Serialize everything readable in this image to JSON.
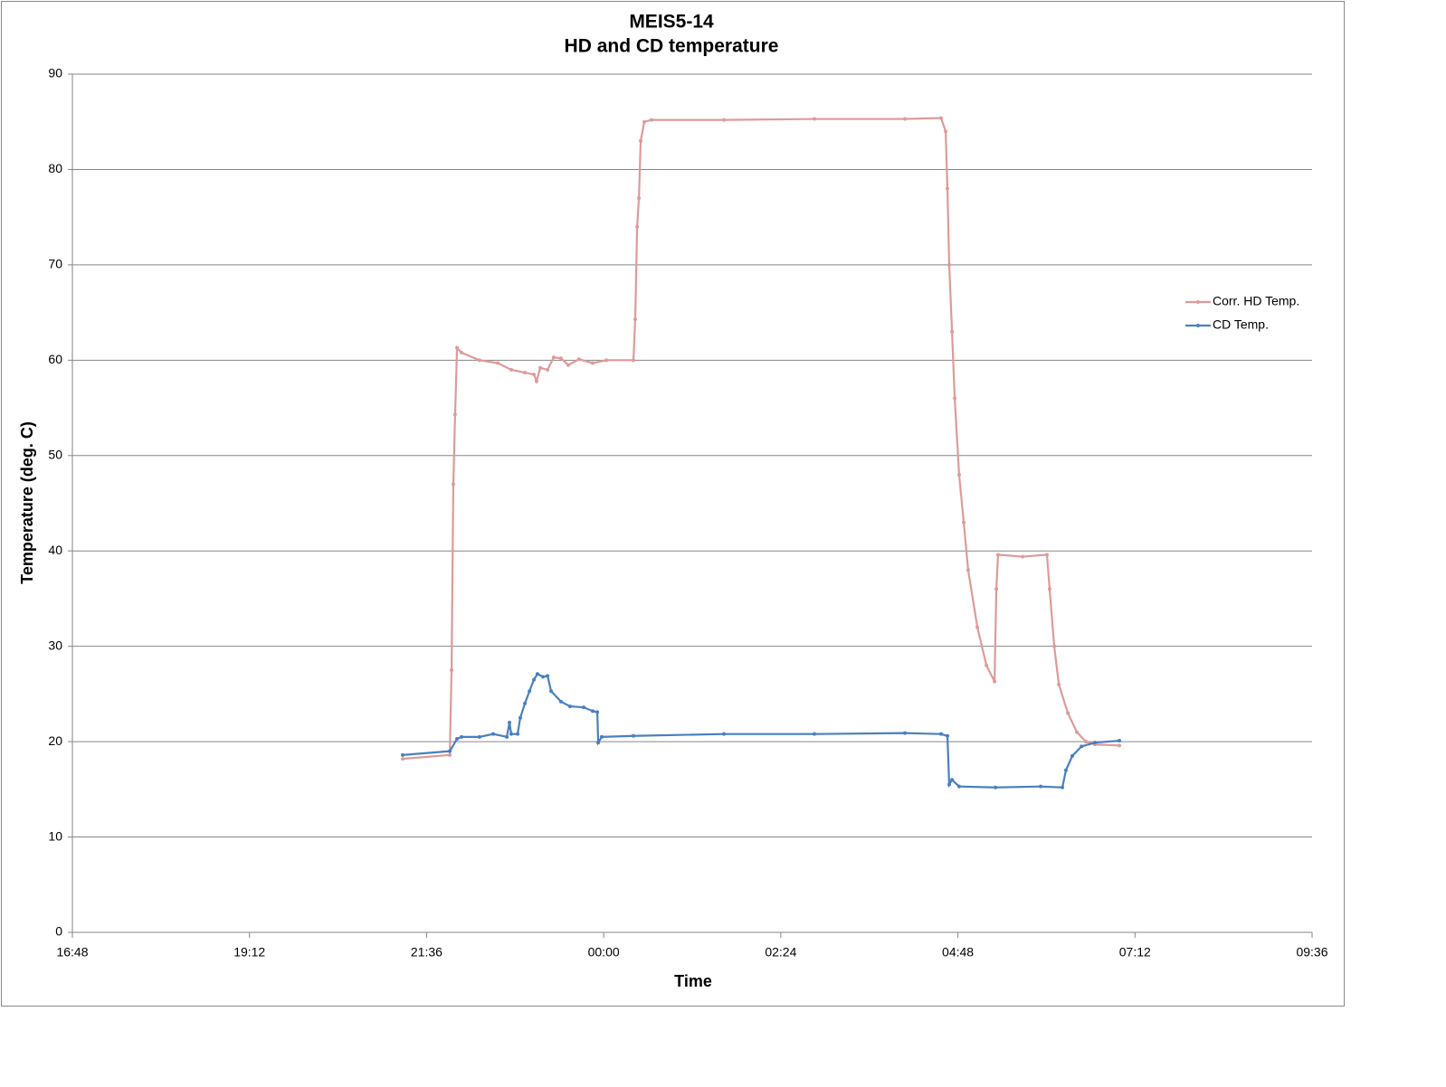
{
  "chart_data": {
    "type": "line",
    "title": "MEIS5-14",
    "subtitle": "HD and CD temperature",
    "x_label": "Time",
    "y_label": "Temperature (deg. C)",
    "xlim": [
      0.7,
      1.4
    ],
    "xticks": [
      {
        "value": 0.7,
        "label": "16:48"
      },
      {
        "value": 0.8,
        "label": "19:12"
      },
      {
        "value": 0.9,
        "label": "21:36"
      },
      {
        "value": 1.0,
        "label": "00:00"
      },
      {
        "value": 1.1,
        "label": "02:24"
      },
      {
        "value": 1.2,
        "label": "04:48"
      },
      {
        "value": 1.3,
        "label": "07:12"
      },
      {
        "value": 1.4,
        "label": "09:36"
      }
    ],
    "ylim": [
      0,
      90
    ],
    "yticks": [
      0,
      10,
      20,
      30,
      40,
      50,
      60,
      70,
      80,
      90
    ],
    "grid": true,
    "legend": "right",
    "series": [
      {
        "name": "Corr. HD Temp.",
        "color": "#dd9b9a",
        "x": [
          0.8865,
          0.9131,
          0.9141,
          0.9151,
          0.9161,
          0.9172,
          0.9197,
          0.9299,
          0.9402,
          0.9478,
          0.9555,
          0.9606,
          0.9621,
          0.9642,
          0.9683,
          0.9718,
          0.9759,
          0.98,
          0.9861,
          0.9938,
          1.0015,
          1.0168,
          1.0178,
          1.0189,
          1.0199,
          1.0209,
          1.0229,
          1.027,
          1.0679,
          1.119,
          1.1701,
          1.1905,
          1.1931,
          1.1941,
          1.1951,
          1.1967,
          1.1982,
          1.2007,
          1.2033,
          1.2058,
          1.211,
          1.2161,
          1.2207,
          1.2217,
          1.2227,
          1.2365,
          1.2503,
          1.2518,
          1.2544,
          1.257,
          1.2621,
          1.2672,
          1.2723,
          1.2774,
          1.2912
        ],
        "values": [
          18.2,
          18.6,
          27.5,
          47,
          54.3,
          61.3,
          60.8,
          60,
          59.7,
          59,
          58.7,
          58.5,
          57.8,
          59.2,
          59,
          60.3,
          60.2,
          59.5,
          60.1,
          59.7,
          60,
          60,
          64.3,
          74,
          77,
          83,
          85,
          85.2,
          85.2,
          85.3,
          85.3,
          85.4,
          84,
          78,
          70,
          63,
          56,
          48,
          43,
          38,
          32,
          28,
          26.3,
          36,
          39.6,
          39.4,
          39.6,
          36,
          30,
          26,
          23,
          21,
          20,
          19.7,
          19.6
        ]
      },
      {
        "name": "CD Temp.",
        "color": "#4a7fc1",
        "x": [
          0.8865,
          0.9131,
          0.9172,
          0.9197,
          0.9299,
          0.9376,
          0.9453,
          0.9468,
          0.9478,
          0.9514,
          0.9529,
          0.9555,
          0.9581,
          0.9606,
          0.9626,
          0.9657,
          0.9683,
          0.9703,
          0.9759,
          0.981,
          0.9887,
          0.9938,
          0.9964,
          0.9969,
          0.9989,
          1.0168,
          1.0679,
          1.119,
          1.1701,
          1.1905,
          1.1941,
          1.1951,
          1.1967,
          1.2007,
          1.2212,
          1.2467,
          1.259,
          1.261,
          1.2646,
          1.2698,
          1.2774,
          1.2912
        ],
        "values": [
          18.6,
          19.0,
          20.3,
          20.5,
          20.5,
          20.8,
          20.5,
          22,
          20.8,
          20.8,
          22.5,
          24,
          25.3,
          26.5,
          27.1,
          26.8,
          26.9,
          25.3,
          24.2,
          23.7,
          23.6,
          23.2,
          23.1,
          19.9,
          20.5,
          20.6,
          20.8,
          20.8,
          20.9,
          20.8,
          20.6,
          15.5,
          16,
          15.3,
          15.2,
          15.3,
          15.2,
          17,
          18.5,
          19.5,
          19.9,
          20.1
        ]
      }
    ]
  }
}
